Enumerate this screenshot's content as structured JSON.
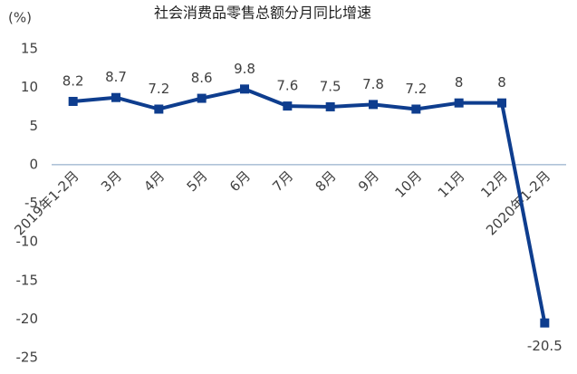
{
  "chart_data": {
    "type": "line",
    "title": "社会消费品零售总额分月同比增速",
    "y_label": "(%)",
    "categories": [
      "2019年1-2月",
      "3月",
      "4月",
      "5月",
      "6月",
      "7月",
      "8月",
      "9月",
      "10月",
      "11月",
      "12月",
      "2020年1-2月"
    ],
    "series": [
      {
        "name": "社会消费品零售总额分月同比增速",
        "color": "#0e3d8e",
        "values": [
          8.2,
          8.7,
          7.2,
          8.6,
          9.8,
          7.6,
          7.5,
          7.8,
          7.2,
          8,
          8,
          -20.5
        ]
      }
    ],
    "ylim": [
      -25,
      15
    ],
    "yticks": [
      -25,
      -20,
      -15,
      -10,
      -5,
      0,
      5,
      10,
      15
    ],
    "grid": false
  }
}
